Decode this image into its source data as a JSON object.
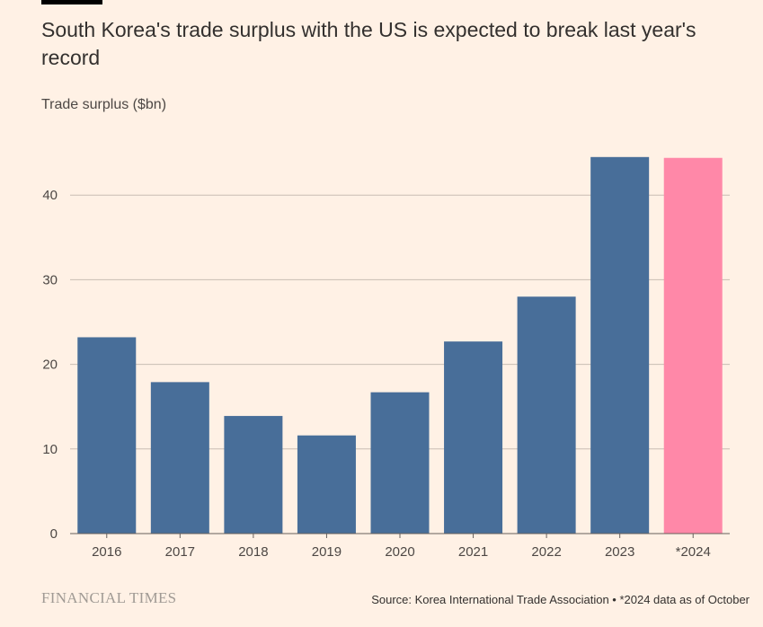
{
  "chart_data": {
    "type": "bar",
    "title": "South Korea's trade surplus with the US is expected to break last year's record",
    "ylabel": "Trade surplus ($bn)",
    "xlabel": "",
    "categories": [
      "2016",
      "2017",
      "2018",
      "2019",
      "2020",
      "2021",
      "2022",
      "2023",
      "*2024"
    ],
    "values": [
      23.2,
      17.9,
      13.9,
      11.6,
      16.7,
      22.7,
      28.0,
      44.5,
      44.4
    ],
    "colors": [
      "#486e99",
      "#486e99",
      "#486e99",
      "#486e99",
      "#486e99",
      "#486e99",
      "#486e99",
      "#486e99",
      "#ff88a8"
    ],
    "ylim": [
      0,
      47
    ],
    "yticks": [
      0,
      10,
      20,
      30,
      40
    ],
    "grid": true
  },
  "footer": {
    "brand": "FINANCIAL TIMES",
    "source": "Source: Korea International Trade Association • *2024 data as of October"
  }
}
